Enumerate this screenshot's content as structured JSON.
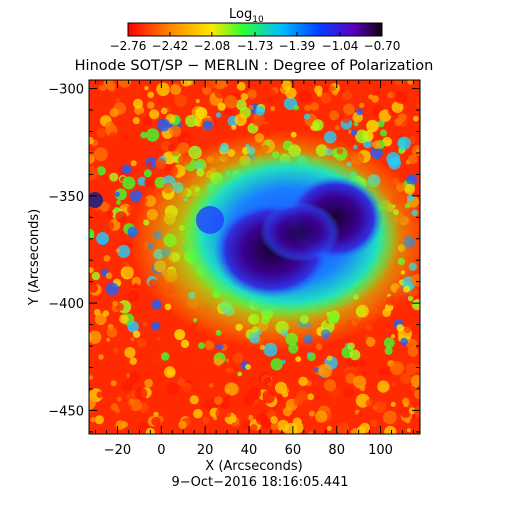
{
  "colorbar": {
    "title": "Log",
    "title_subscript": "10",
    "tick_labels": [
      "−2.76",
      "−2.42",
      "−2.08",
      "−1.73",
      "−1.39",
      "−1.04",
      "−0.70"
    ],
    "range": [
      -2.76,
      -0.7
    ]
  },
  "title": "Hinode SOT/SP − MERLIN : Degree of Polarization",
  "xlabel": "X (Arcseconds)",
  "ylabel": "Y (Arcseconds)",
  "timestamp": "9−Oct−2016 18:16:05.441",
  "x_tick_labels": [
    "−20",
    "0",
    "20",
    "40",
    "60",
    "80",
    "100"
  ],
  "y_tick_labels": [
    "−300",
    "−350",
    "−400",
    "−450"
  ],
  "chart_data": {
    "type": "heatmap",
    "title": "Hinode SOT/SP − MERLIN : Degree of Polarization",
    "xlabel": "X (Arcseconds)",
    "ylabel": "Y (Arcseconds)",
    "xlim": [
      -33,
      118
    ],
    "ylim": [
      -461,
      -296
    ],
    "x_ticks": [
      -20,
      0,
      20,
      40,
      60,
      80,
      100
    ],
    "y_ticks": [
      -300,
      -350,
      -400,
      -450
    ],
    "colorbar_range": [
      -2.76,
      -0.7
    ],
    "colorbar_ticks": [
      -2.76,
      -2.42,
      -2.08,
      -1.73,
      -1.39,
      -1.04,
      -0.7
    ],
    "colormap": "rainbow"
  }
}
